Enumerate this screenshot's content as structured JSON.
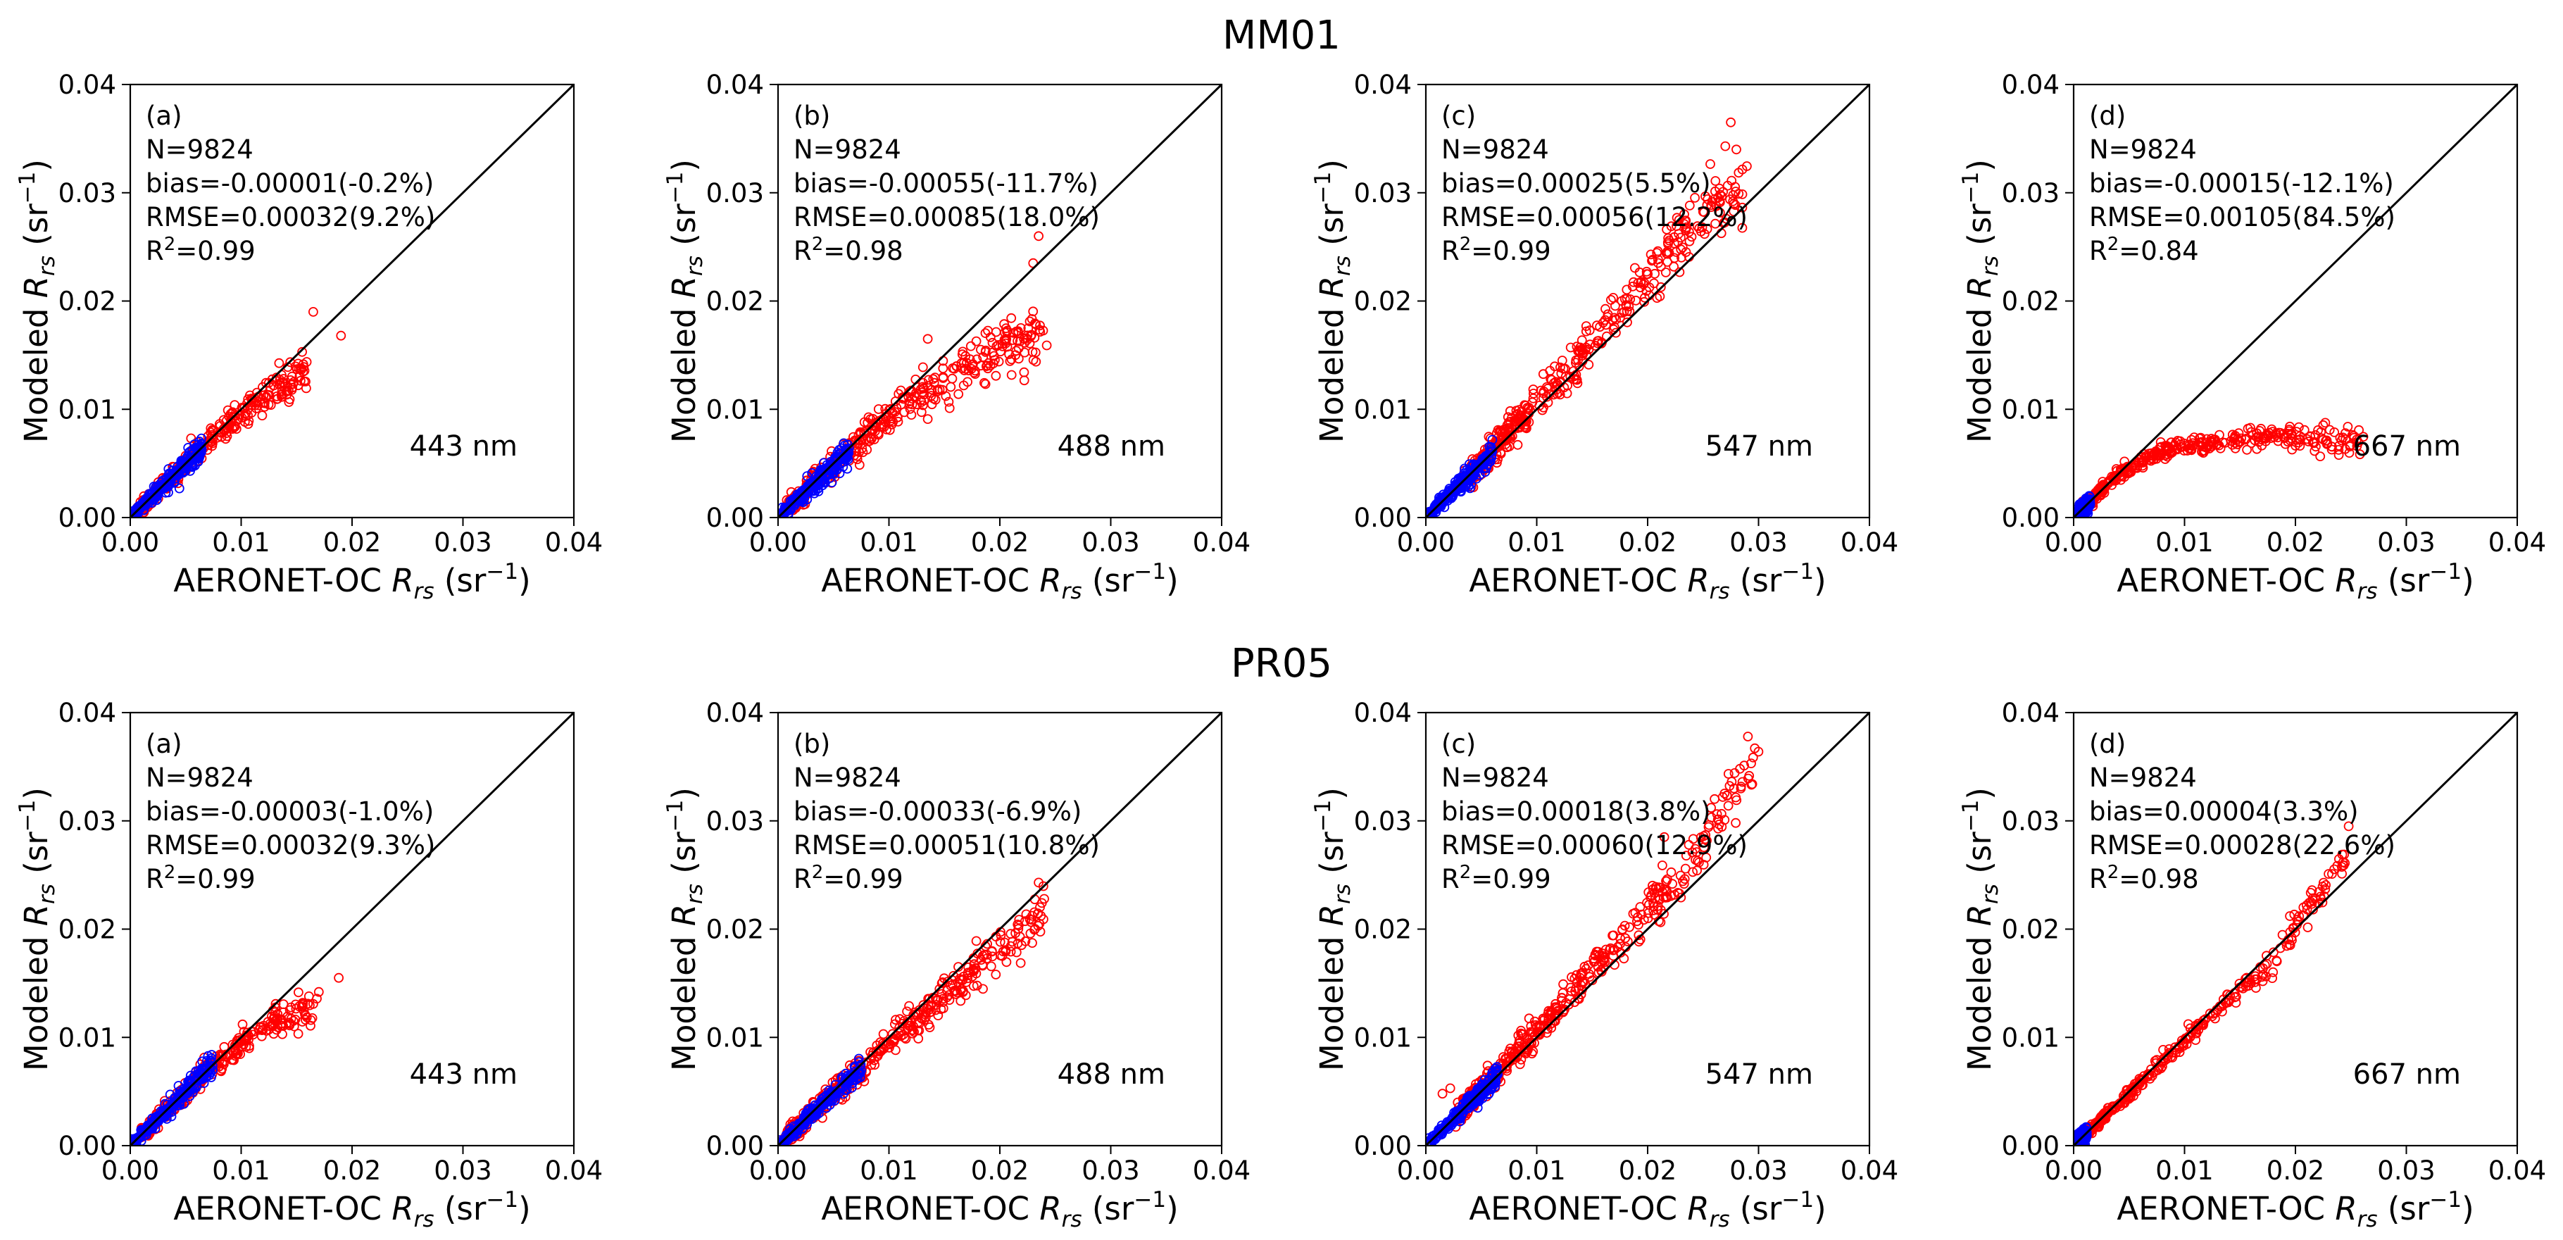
{
  "figure": {
    "row_titles": [
      "MM01",
      "PR05"
    ]
  },
  "labels": {
    "xlabel_prefix": "AERONET-OC ",
    "xlabel_var": "R",
    "xlabel_sub": "rs",
    "xlabel_unit_open": " (sr",
    "xlabel_unit_exp": "−1",
    "xlabel_unit_close": ")",
    "ylabel_prefix": "Modeled ",
    "ylabel_var": "R",
    "ylabel_sub": "rs",
    "ylabel_unit_open": " (sr",
    "ylabel_unit_exp": "−1",
    "ylabel_unit_close": ")",
    "ticks": [
      "0.00",
      "0.01",
      "0.02",
      "0.03",
      "0.04"
    ]
  },
  "colors": {
    "red": "#ff0000",
    "blue": "#0000ff",
    "line": "#000000"
  },
  "chart_data": [
    {
      "type": "scatter",
      "row": "MM01",
      "panel": "(a)",
      "wavelength": "443 nm",
      "N": "N=9824",
      "bias": "bias=-0.00001(-0.2%)",
      "rmse": "RMSE=0.00032(9.2%)",
      "r2_label": "R",
      "r2_exp": "2",
      "r2_value": "=0.99",
      "xlim": [
        0,
        0.04
      ],
      "ylim": [
        0,
        0.04
      ],
      "blue_trend": {
        "x_end": 0.0065,
        "slope": 1.0,
        "spread": 0.0004
      },
      "red_trend": {
        "points": [
          [
            0.001,
            0.001
          ],
          [
            0.005,
            0.005
          ],
          [
            0.01,
            0.0097
          ],
          [
            0.016,
            0.0135
          ]
        ],
        "spread": 0.0009,
        "count": 320
      },
      "outliers": [
        [
          0.0165,
          0.019
        ],
        [
          0.019,
          0.0168
        ],
        [
          0.0155,
          0.0153
        ]
      ]
    },
    {
      "type": "scatter",
      "row": "MM01",
      "panel": "(b)",
      "wavelength": "488 nm",
      "N": "N=9824",
      "bias": "bias=-0.00055(-11.7%)",
      "rmse": "RMSE=0.00085(18.0%)",
      "r2_label": "R",
      "r2_exp": "2",
      "r2_value": "=0.98",
      "xlim": [
        0,
        0.04
      ],
      "ylim": [
        0,
        0.04
      ],
      "blue_trend": {
        "x_end": 0.0065,
        "slope": 0.95,
        "spread": 0.0005
      },
      "red_trend": {
        "points": [
          [
            0.001,
            0.001
          ],
          [
            0.006,
            0.0058
          ],
          [
            0.012,
            0.011
          ],
          [
            0.018,
            0.0145
          ],
          [
            0.024,
            0.0175
          ]
        ],
        "spread": 0.0014,
        "count": 420
      },
      "outliers": [
        [
          0.0235,
          0.026
        ],
        [
          0.023,
          0.0235
        ],
        [
          0.0135,
          0.0165
        ]
      ]
    },
    {
      "type": "scatter",
      "row": "MM01",
      "panel": "(c)",
      "wavelength": "547 nm",
      "N": "N=9824",
      "bias": "bias=0.00025(5.5%)",
      "rmse": "RMSE=0.00056(12.2%)",
      "r2_label": "R",
      "r2_exp": "2",
      "r2_value": "=0.99",
      "xlim": [
        0,
        0.04
      ],
      "ylim": [
        0,
        0.04
      ],
      "blue_trend": {
        "x_end": 0.006,
        "slope": 1.0,
        "spread": 0.0004
      },
      "red_trend": {
        "points": [
          [
            0.004,
            0.004
          ],
          [
            0.01,
            0.0105
          ],
          [
            0.018,
            0.0195
          ],
          [
            0.024,
            0.027
          ],
          [
            0.029,
            0.031
          ]
        ],
        "spread": 0.0016,
        "count": 460
      },
      "outliers": [
        [
          0.0275,
          0.0365
        ],
        [
          0.028,
          0.034
        ],
        [
          0.027,
          0.0343
        ]
      ]
    },
    {
      "type": "scatter",
      "row": "MM01",
      "panel": "(d)",
      "wavelength": "667 nm",
      "N": "N=9824",
      "bias": "bias=-0.00015(-12.1%)",
      "rmse": "RMSE=0.00105(84.5%)",
      "r2_label": "R",
      "r2_exp": "2",
      "r2_value": "=0.84",
      "xlim": [
        0,
        0.04
      ],
      "ylim": [
        0,
        0.04
      ],
      "blue_trend": {
        "x_end": 0.0015,
        "slope": 1.0,
        "spread": 0.0003
      },
      "red_trend": {
        "points": [
          [
            0.0008,
            0.0008
          ],
          [
            0.004,
            0.004
          ],
          [
            0.008,
            0.0062
          ],
          [
            0.014,
            0.0072
          ],
          [
            0.02,
            0.0074
          ],
          [
            0.026,
            0.007
          ]
        ],
        "spread": 0.0007,
        "count": 380
      },
      "outliers": [
        [
          0.0245,
          0.0078
        ],
        [
          0.0225,
          0.0072
        ]
      ]
    },
    {
      "type": "scatter",
      "row": "PR05",
      "panel": "(a)",
      "wavelength": "443 nm",
      "N": "N=9824",
      "bias": "bias=-0.00003(-1.0%)",
      "rmse": "RMSE=0.00032(9.3%)",
      "r2_label": "R",
      "r2_exp": "2",
      "r2_value": "=0.99",
      "xlim": [
        0,
        0.04
      ],
      "ylim": [
        0,
        0.04
      ],
      "blue_trend": {
        "x_end": 0.0075,
        "slope": 1.0,
        "spread": 0.0004
      },
      "red_trend": {
        "points": [
          [
            0.001,
            0.001
          ],
          [
            0.006,
            0.006
          ],
          [
            0.011,
            0.0105
          ],
          [
            0.017,
            0.013
          ]
        ],
        "spread": 0.0008,
        "count": 320
      },
      "outliers": [
        [
          0.0188,
          0.0155
        ],
        [
          0.017,
          0.0142
        ]
      ]
    },
    {
      "type": "scatter",
      "row": "PR05",
      "panel": "(b)",
      "wavelength": "488 nm",
      "N": "N=9824",
      "bias": "bias=-0.00033(-6.9%)",
      "rmse": "RMSE=0.00051(10.8%)",
      "r2_label": "R",
      "r2_exp": "2",
      "r2_value": "=0.99",
      "xlim": [
        0,
        0.04
      ],
      "ylim": [
        0,
        0.04
      ],
      "blue_trend": {
        "x_end": 0.0075,
        "slope": 0.95,
        "spread": 0.0004
      },
      "red_trend": {
        "points": [
          [
            0.001,
            0.001
          ],
          [
            0.008,
            0.0075
          ],
          [
            0.016,
            0.0148
          ],
          [
            0.024,
            0.0215
          ]
        ],
        "spread": 0.0011,
        "count": 420
      },
      "outliers": [
        [
          0.0235,
          0.0243
        ],
        [
          0.024,
          0.0228
        ],
        [
          0.004,
          0.0041
        ]
      ]
    },
    {
      "type": "scatter",
      "row": "PR05",
      "panel": "(c)",
      "wavelength": "547 nm",
      "N": "N=9824",
      "bias": "bias=0.00018(3.8%)",
      "rmse": "RMSE=0.00060(12.9%)",
      "r2_label": "R",
      "r2_exp": "2",
      "r2_value": "=0.99",
      "xlim": [
        0,
        0.04
      ],
      "ylim": [
        0,
        0.04
      ],
      "blue_trend": {
        "x_end": 0.0065,
        "slope": 1.0,
        "spread": 0.0004
      },
      "red_trend": {
        "points": [
          [
            0.003,
            0.003
          ],
          [
            0.01,
            0.0105
          ],
          [
            0.018,
            0.0195
          ],
          [
            0.024,
            0.026
          ],
          [
            0.03,
            0.0365
          ]
        ],
        "spread": 0.0014,
        "count": 460
      },
      "outliers": [
        [
          0.0015,
          0.0048
        ],
        [
          0.0022,
          0.0053
        ],
        [
          0.0215,
          0.0285
        ]
      ]
    },
    {
      "type": "scatter",
      "row": "PR05",
      "panel": "(d)",
      "wavelength": "667 nm",
      "N": "N=9824",
      "bias": "bias=0.00004(3.3%)",
      "rmse": "RMSE=0.00028(22.6%)",
      "r2_label": "R",
      "r2_exp": "2",
      "r2_value": "=0.98",
      "xlim": [
        0,
        0.04
      ],
      "ylim": [
        0,
        0.04
      ],
      "blue_trend": {
        "x_end": 0.0012,
        "slope": 1.0,
        "spread": 0.0003
      },
      "red_trend": {
        "points": [
          [
            0.0006,
            0.0006
          ],
          [
            0.006,
            0.0058
          ],
          [
            0.012,
            0.0115
          ],
          [
            0.018,
            0.017
          ],
          [
            0.025,
            0.0275
          ]
        ],
        "spread": 0.0006,
        "count": 340
      },
      "outliers": [
        [
          0.0248,
          0.0295
        ],
        [
          0.0215,
          0.0236
        ],
        [
          0.021,
          0.0222
        ],
        [
          0.0195,
          0.0212
        ]
      ]
    }
  ]
}
